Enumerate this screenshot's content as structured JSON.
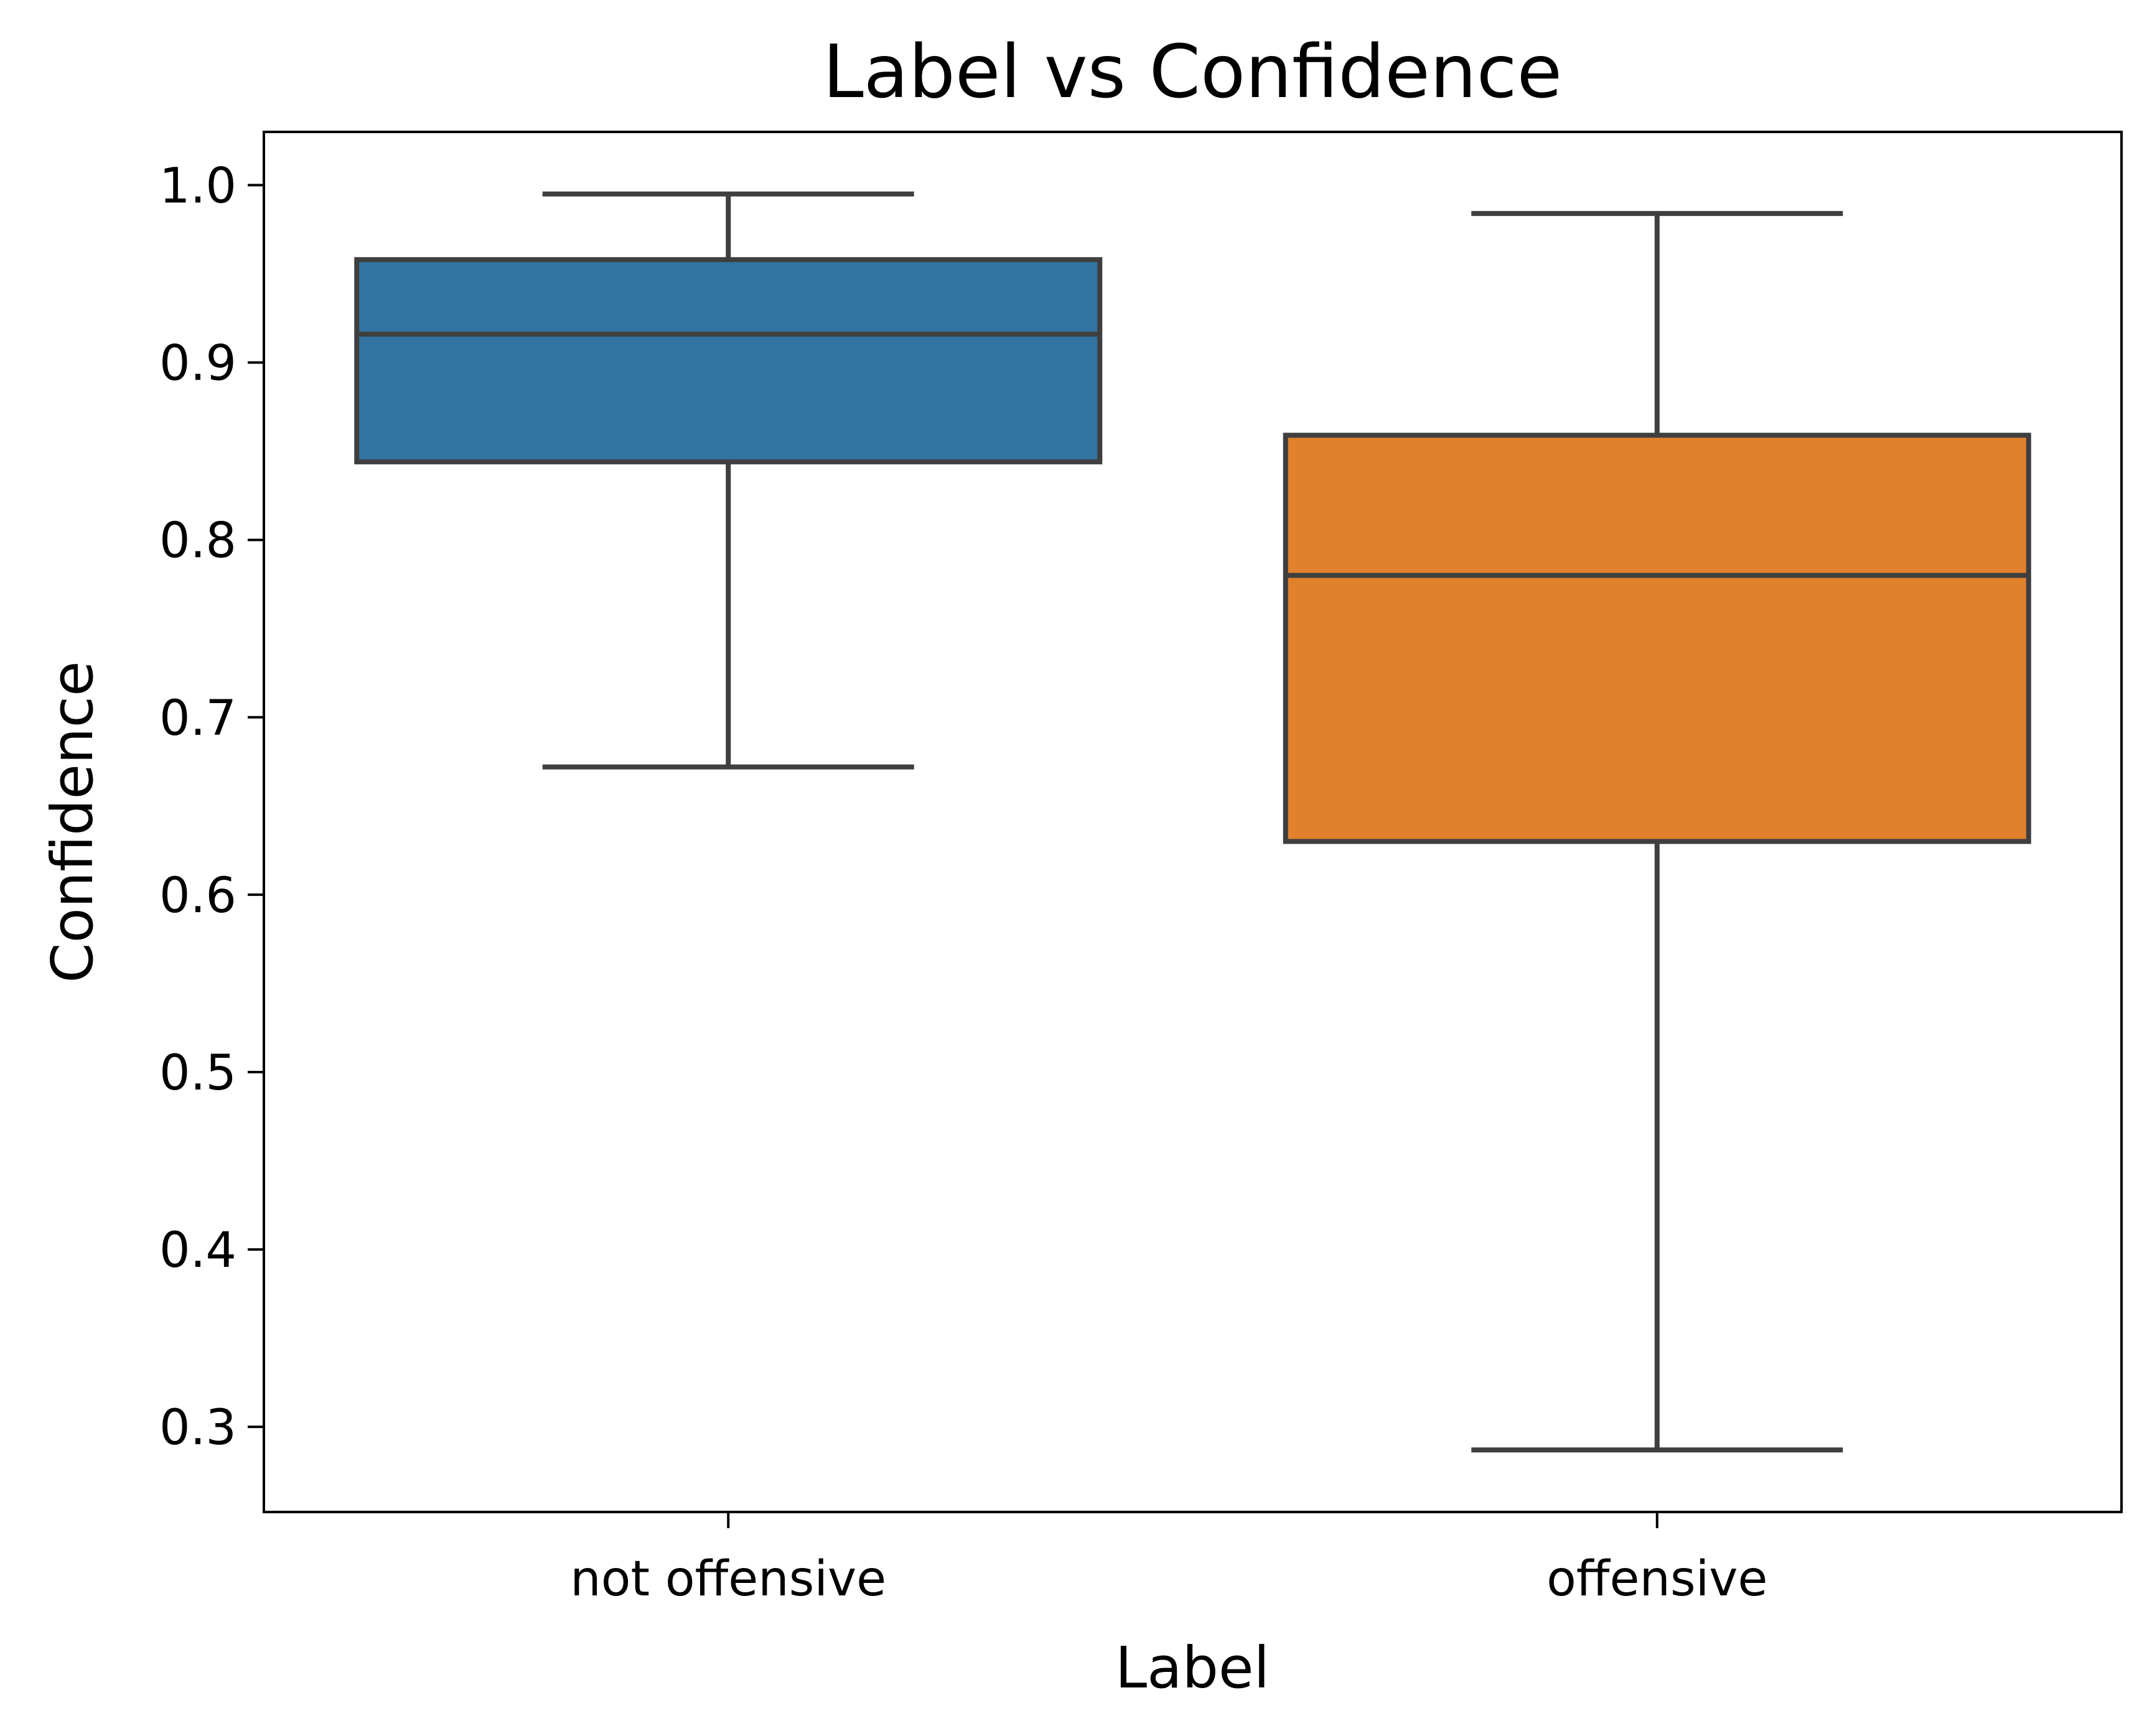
{
  "chart_data": {
    "type": "box",
    "title": "Label vs Confidence",
    "xlabel": "Label",
    "ylabel": "Confidence",
    "ylim": [
      0.252,
      1.03
    ],
    "yticks": [
      "0.3",
      "0.4",
      "0.5",
      "0.6",
      "0.7",
      "0.8",
      "0.9",
      "1.0"
    ],
    "grid": false,
    "categories": [
      "not offensive",
      "offensive"
    ],
    "boxes": [
      {
        "category": "not offensive",
        "whisker_low": 0.672,
        "q1": 0.844,
        "median": 0.916,
        "q3": 0.958,
        "whisker_high": 0.995,
        "color": "#3274a1"
      },
      {
        "category": "offensive",
        "whisker_low": 0.287,
        "q1": 0.63,
        "median": 0.78,
        "q3": 0.859,
        "whisker_high": 0.984,
        "color": "#e1812c"
      }
    ],
    "line_color": "#3f3f3f"
  }
}
